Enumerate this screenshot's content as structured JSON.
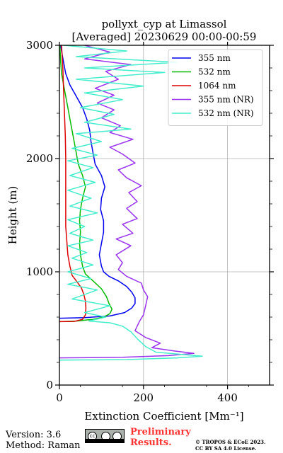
{
  "chart_data": {
    "type": "line",
    "title_line1": "pollyxt_cyp at Limassol",
    "title_line2": "[Averaged] 20230629 00:00-00:59",
    "xlabel": "Extinction Coefficient [Mm⁻¹]",
    "ylabel": "Height (m)",
    "xlim": [
      0,
      500
    ],
    "ylim": [
      0,
      3000
    ],
    "xticks": [
      0,
      200,
      400
    ],
    "yticks": [
      0,
      1000,
      2000,
      3000
    ],
    "grid": true,
    "legend_position": "top-right",
    "series": [
      {
        "name": "355 nm",
        "color": "#0000ee",
        "points": [
          [
            0,
            590
          ],
          [
            60,
            595
          ],
          [
            120,
            610
          ],
          [
            155,
            640
          ],
          [
            172,
            680
          ],
          [
            180,
            720
          ],
          [
            180,
            770
          ],
          [
            172,
            820
          ],
          [
            160,
            870
          ],
          [
            140,
            920
          ],
          [
            118,
            960
          ],
          [
            105,
            1000
          ],
          [
            100,
            1050
          ],
          [
            95,
            1150
          ],
          [
            100,
            1250
          ],
          [
            105,
            1350
          ],
          [
            105,
            1450
          ],
          [
            98,
            1550
          ],
          [
            100,
            1650
          ],
          [
            108,
            1750
          ],
          [
            100,
            1850
          ],
          [
            85,
            1950
          ],
          [
            80,
            2050
          ],
          [
            75,
            2150
          ],
          [
            72,
            2250
          ],
          [
            65,
            2350
          ],
          [
            55,
            2450
          ],
          [
            40,
            2550
          ],
          [
            25,
            2650
          ],
          [
            15,
            2750
          ],
          [
            10,
            2850
          ],
          [
            5,
            2950
          ],
          [
            3,
            3000
          ]
        ]
      },
      {
        "name": "532 nm",
        "color": "#00bb00",
        "points": [
          [
            0,
            560
          ],
          [
            40,
            565
          ],
          [
            80,
            580
          ],
          [
            105,
            600
          ],
          [
            120,
            630
          ],
          [
            125,
            670
          ],
          [
            118,
            720
          ],
          [
            112,
            780
          ],
          [
            100,
            850
          ],
          [
            80,
            920
          ],
          [
            62,
            980
          ],
          [
            55,
            1050
          ],
          [
            50,
            1150
          ],
          [
            48,
            1250
          ],
          [
            50,
            1350
          ],
          [
            48,
            1450
          ],
          [
            50,
            1550
          ],
          [
            55,
            1650
          ],
          [
            62,
            1750
          ],
          [
            55,
            1850
          ],
          [
            45,
            1950
          ],
          [
            40,
            2050
          ],
          [
            35,
            2150
          ],
          [
            30,
            2250
          ],
          [
            25,
            2350
          ],
          [
            20,
            2450
          ],
          [
            15,
            2550
          ],
          [
            10,
            2650
          ],
          [
            5,
            2750
          ],
          [
            3,
            2850
          ],
          [
            1,
            3000
          ]
        ]
      },
      {
        "name": "1064 nm",
        "color": "#dd0000",
        "points": [
          [
            0,
            560
          ],
          [
            35,
            562
          ],
          [
            55,
            580
          ],
          [
            62,
            620
          ],
          [
            63,
            680
          ],
          [
            62,
            740
          ],
          [
            58,
            800
          ],
          [
            52,
            860
          ],
          [
            40,
            920
          ],
          [
            30,
            970
          ],
          [
            25,
            1050
          ],
          [
            20,
            1150
          ],
          [
            18,
            1250
          ],
          [
            15,
            1400
          ],
          [
            15,
            1550
          ],
          [
            15,
            1700
          ],
          [
            15,
            1850
          ],
          [
            15,
            2000
          ],
          [
            14,
            2200
          ],
          [
            12,
            2400
          ],
          [
            10,
            2600
          ],
          [
            8,
            2800
          ],
          [
            5,
            3000
          ]
        ]
      },
      {
        "name": "355 nm (NR)",
        "color": "#9933ee",
        "points": [
          [
            0,
            240
          ],
          [
            150,
            245
          ],
          [
            260,
            260
          ],
          [
            320,
            280
          ],
          [
            275,
            300
          ],
          [
            220,
            330
          ],
          [
            240,
            370
          ],
          [
            205,
            420
          ],
          [
            180,
            480
          ],
          [
            190,
            560
          ],
          [
            200,
            620
          ],
          [
            205,
            700
          ],
          [
            210,
            780
          ],
          [
            200,
            840
          ],
          [
            195,
            900
          ],
          [
            160,
            960
          ],
          [
            140,
            1020
          ],
          [
            150,
            1080
          ],
          [
            135,
            1150
          ],
          [
            170,
            1230
          ],
          [
            135,
            1290
          ],
          [
            175,
            1340
          ],
          [
            150,
            1420
          ],
          [
            185,
            1470
          ],
          [
            160,
            1560
          ],
          [
            185,
            1620
          ],
          [
            165,
            1700
          ],
          [
            195,
            1760
          ],
          [
            160,
            1830
          ],
          [
            140,
            1900
          ],
          [
            180,
            1960
          ],
          [
            150,
            2040
          ],
          [
            120,
            2100
          ],
          [
            175,
            2170
          ],
          [
            120,
            2230
          ],
          [
            145,
            2290
          ],
          [
            100,
            2360
          ],
          [
            130,
            2430
          ],
          [
            90,
            2490
          ],
          [
            130,
            2560
          ],
          [
            85,
            2620
          ],
          [
            140,
            2700
          ],
          [
            110,
            2770
          ],
          [
            170,
            2830
          ],
          [
            60,
            2880
          ],
          [
            120,
            2940
          ],
          [
            60,
            3000
          ]
        ]
      },
      {
        "name": "532 nm (NR)",
        "color": "#44eecc",
        "points": [
          [
            0,
            220
          ],
          [
            160,
            225
          ],
          [
            280,
            240
          ],
          [
            340,
            255
          ],
          [
            230,
            290
          ],
          [
            205,
            340
          ],
          [
            185,
            410
          ],
          [
            170,
            470
          ],
          [
            150,
            520
          ],
          [
            120,
            550
          ],
          [
            70,
            565
          ],
          [
            110,
            600
          ],
          [
            60,
            640
          ],
          [
            120,
            700
          ],
          [
            30,
            760
          ],
          [
            90,
            840
          ],
          [
            20,
            890
          ],
          [
            75,
            940
          ],
          [
            20,
            1000
          ],
          [
            80,
            1060
          ],
          [
            30,
            1120
          ],
          [
            65,
            1170
          ],
          [
            20,
            1230
          ],
          [
            80,
            1280
          ],
          [
            25,
            1340
          ],
          [
            60,
            1400
          ],
          [
            20,
            1460
          ],
          [
            90,
            1520
          ],
          [
            25,
            1580
          ],
          [
            75,
            1650
          ],
          [
            20,
            1720
          ],
          [
            85,
            1790
          ],
          [
            25,
            1850
          ],
          [
            80,
            1920
          ],
          [
            20,
            1980
          ],
          [
            90,
            2030
          ],
          [
            30,
            2090
          ],
          [
            100,
            2150
          ],
          [
            40,
            2220
          ],
          [
            170,
            2260
          ],
          [
            60,
            2320
          ],
          [
            130,
            2390
          ],
          [
            50,
            2450
          ],
          [
            150,
            2520
          ],
          [
            60,
            2580
          ],
          [
            200,
            2640
          ],
          [
            40,
            2700
          ],
          [
            250,
            2760
          ],
          [
            60,
            2800
          ],
          [
            280,
            2850
          ],
          [
            40,
            2900
          ],
          [
            160,
            2950
          ],
          [
            10,
            3000
          ]
        ]
      }
    ]
  },
  "footer": {
    "version": "Version: 3.6",
    "method": "Method: Raman",
    "preliminary": "Preliminary Results.",
    "copyright_line1": "© TROPOS & ECoE 2023.",
    "copyright_line2": "CC BY SA 4.0 License.",
    "cc_badge": "cc-by-sa-badge",
    "cc_badge_text": "cc"
  }
}
